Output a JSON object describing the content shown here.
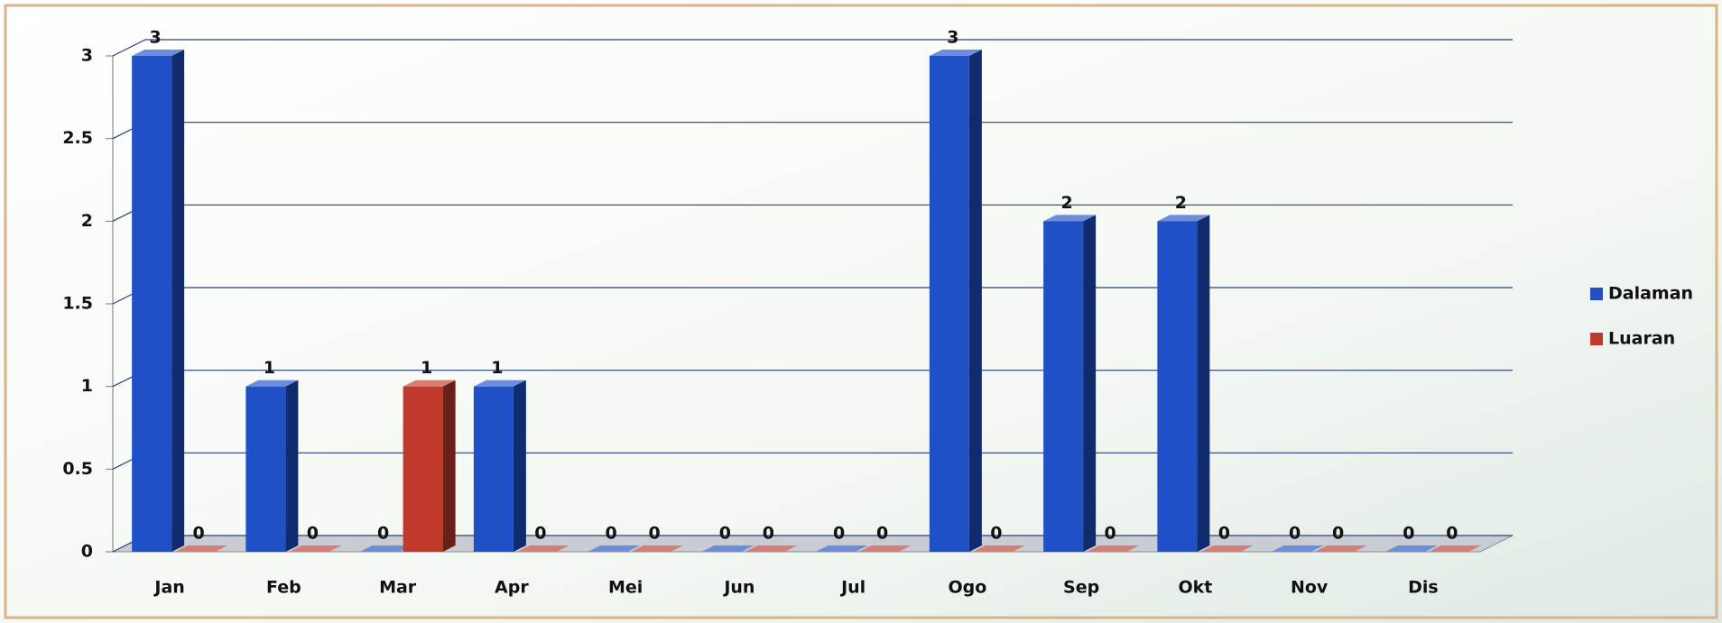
{
  "chart_data": {
    "type": "bar3d",
    "categories": [
      "Jan",
      "Feb",
      "Mar",
      "Apr",
      "Mei",
      "Jun",
      "Jul",
      "Ogo",
      "Sep",
      "Okt",
      "Nov",
      "Dis"
    ],
    "series": [
      {
        "name": "Dalaman",
        "color": "#1f50c8",
        "values": [
          3,
          1,
          0,
          1,
          0,
          0,
          0,
          3,
          2,
          2,
          0,
          0
        ]
      },
      {
        "name": "Luaran",
        "color": "#c0392b",
        "values": [
          0,
          0,
          1,
          0,
          0,
          0,
          0,
          0,
          0,
          0,
          0,
          0
        ]
      }
    ],
    "ylim": [
      0,
      3
    ],
    "yticks": [
      0,
      0.5,
      1,
      1.5,
      2,
      2.5,
      3
    ],
    "grid": true,
    "legend": "right"
  }
}
